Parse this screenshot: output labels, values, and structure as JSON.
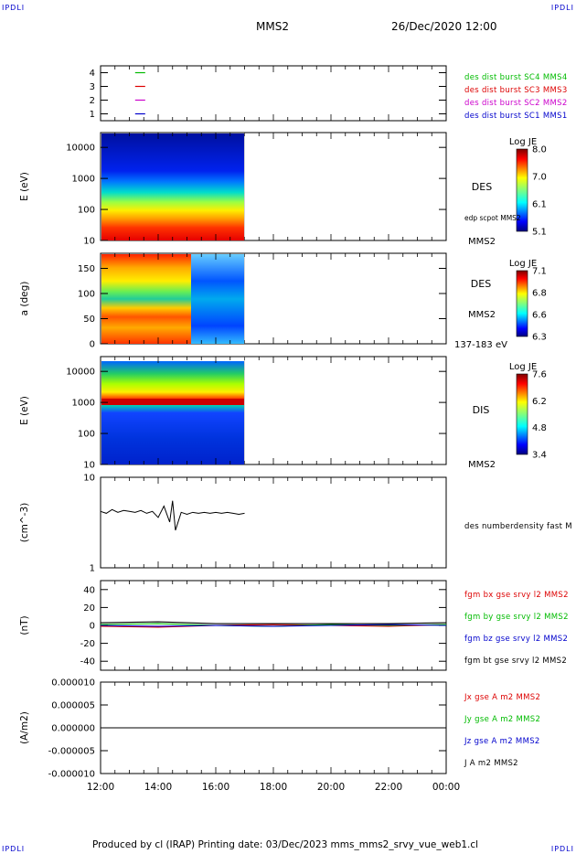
{
  "corners": {
    "tl": "IPDLI",
    "tr": "IPDLI",
    "bl": "IPDLI",
    "br": "IPDLI"
  },
  "header": {
    "mission": "MMS2",
    "datetime": "26/Dec/2020 12:00"
  },
  "footer": {
    "text": "Produced by cl (IRAP)   Printing date: 03/Dec/2023   mms_mms2_srvy_vue_web1.cl"
  },
  "colors": {
    "mms1": "#0000cc",
    "mms2": "#cc00cc",
    "mms3": "#dd0000",
    "mms4": "#00bb00",
    "jet_low": "#000080",
    "jet_high": "#800000"
  },
  "chart_data": [
    {
      "type": "line",
      "panel": "burst-intervals",
      "ylabel": "",
      "ylim": [
        0.5,
        4.5
      ],
      "yticks": [
        "1",
        "2",
        "3",
        "4"
      ],
      "series": [
        {
          "name": "des dist burst SC1 MMS1",
          "color": "#0000cc",
          "y": 1
        },
        {
          "name": "des dist burst SC2 MMS2",
          "color": "#cc00cc",
          "y": 2
        },
        {
          "name": "des dist burst SC3 MMS3",
          "color": "#dd0000",
          "y": 3
        },
        {
          "name": "des dist burst SC4 MMS4",
          "color": "#00bb00",
          "y": 4
        }
      ],
      "intervals_hours": [
        [
          13.2,
          13.55
        ]
      ],
      "legend": "right"
    },
    {
      "type": "heatmap",
      "panel": "des-energy",
      "ylabel": "E (eV)",
      "scale": "log",
      "ylim": [
        10,
        30000
      ],
      "yticks": [
        "10",
        "100",
        "1000",
        "10000"
      ],
      "data_end_hour": 17.0,
      "label": "DES",
      "extra_labels": [
        "edp scpot MMS2",
        "MMS2"
      ],
      "colorbar": {
        "title": "Log JE",
        "ticks": [
          "8.0",
          "7.0",
          "6.1",
          "5.1"
        ]
      }
    },
    {
      "type": "heatmap",
      "panel": "des-pitch-angle",
      "ylabel": "a (deg)",
      "ylim": [
        0,
        180
      ],
      "yticks": [
        "0",
        "50",
        "100",
        "150"
      ],
      "data_end_hour": 17.0,
      "label": "DES",
      "extra_labels": [
        "MMS2",
        "137-183 eV"
      ],
      "colorbar": {
        "title": "Log JE",
        "ticks": [
          "7.1",
          "6.8",
          "6.6",
          "6.3"
        ]
      }
    },
    {
      "type": "heatmap",
      "panel": "dis-energy",
      "ylabel": "E (eV)",
      "scale": "log",
      "ylim": [
        10,
        30000
      ],
      "yticks": [
        "10",
        "100",
        "1000",
        "10000"
      ],
      "data_end_hour": 17.0,
      "label": "DIS",
      "extra_labels": [
        "MMS2"
      ],
      "colorbar": {
        "title": "Log JE",
        "ticks": [
          "7.6",
          "6.2",
          "4.8",
          "3.4"
        ]
      }
    },
    {
      "type": "line",
      "panel": "density",
      "ylabel": "(cm^-3)",
      "scale": "log",
      "ylim": [
        1,
        10
      ],
      "yticks": [
        "1",
        "10"
      ],
      "series": [
        {
          "name": "des numberdensity fast M",
          "color": "#000000",
          "x": [
            12.0,
            12.2,
            12.4,
            12.6,
            12.8,
            13.0,
            13.2,
            13.4,
            13.6,
            13.8,
            14.0,
            14.2,
            14.4,
            14.5,
            14.6,
            14.8,
            15.0,
            15.2,
            15.4,
            15.6,
            15.8,
            16.0,
            16.2,
            16.4,
            16.6,
            16.8,
            17.0
          ],
          "y": [
            4.2,
            4.0,
            4.4,
            4.1,
            4.3,
            4.2,
            4.1,
            4.3,
            4.0,
            4.2,
            3.6,
            4.8,
            3.2,
            5.5,
            2.6,
            4.1,
            3.9,
            4.1,
            4.0,
            4.1,
            4.0,
            4.1,
            4.0,
            4.1,
            4.0,
            3.9,
            4.0
          ]
        }
      ]
    },
    {
      "type": "line",
      "panel": "magnetic-field",
      "ylabel": "(nT)",
      "ylim": [
        -50,
        50
      ],
      "yticks": [
        "-40",
        "-20",
        "0",
        "20",
        "40"
      ],
      "series": [
        {
          "name": "fgm bx gse srvy l2 MMS2",
          "color": "#dd0000",
          "x": [
            12,
            14,
            16,
            18,
            20,
            22,
            24
          ],
          "y": [
            -1,
            -2,
            0,
            1,
            0,
            -1,
            1
          ]
        },
        {
          "name": "fgm by gse srvy l2 MMS2",
          "color": "#00bb00",
          "x": [
            12,
            14,
            16,
            18,
            20,
            22,
            24
          ],
          "y": [
            1,
            2,
            0,
            -1,
            1,
            0,
            1
          ]
        },
        {
          "name": "fgm bz gse srvy l2 MMS2",
          "color": "#0000cc",
          "x": [
            12,
            14,
            16,
            18,
            20,
            22,
            24
          ],
          "y": [
            0,
            -1,
            0,
            -1,
            0,
            1,
            0
          ]
        },
        {
          "name": "fgm bt gse srvy l2 MMS2",
          "color": "#000000",
          "x": [
            12,
            14,
            16,
            18,
            20,
            22,
            24
          ],
          "y": [
            3,
            4,
            2,
            2,
            2,
            2,
            3
          ]
        }
      ]
    },
    {
      "type": "line",
      "panel": "current-density",
      "ylabel": "(A/m2)",
      "ylim": [
        -1e-05,
        1e-05
      ],
      "yticks": [
        "-0.000010",
        "-0.000005",
        "0.000000",
        "0.000005",
        "0.000010"
      ],
      "xlabel": "",
      "xticks": [
        "12:00",
        "14:00",
        "16:00",
        "18:00",
        "20:00",
        "22:00",
        "00:00"
      ],
      "series": [
        {
          "name": "Jx gse A m2 MMS2",
          "color": "#dd0000",
          "x": [
            12,
            24
          ],
          "y": [
            0,
            0
          ]
        },
        {
          "name": "Jy gse A m2 MMS2",
          "color": "#00bb00",
          "x": [
            12,
            24
          ],
          "y": [
            0,
            0
          ]
        },
        {
          "name": "Jz gse A m2 MMS2",
          "color": "#0000cc",
          "x": [
            12,
            24
          ],
          "y": [
            0,
            0
          ]
        },
        {
          "name": "J A m2 MMS2",
          "color": "#000000",
          "x": [
            12,
            24
          ],
          "y": [
            0,
            0
          ]
        }
      ]
    }
  ]
}
